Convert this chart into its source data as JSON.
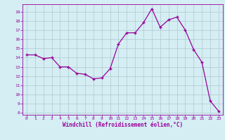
{
  "x": [
    0,
    1,
    2,
    3,
    4,
    5,
    6,
    7,
    8,
    9,
    10,
    11,
    12,
    13,
    14,
    15,
    16,
    17,
    18,
    19,
    20,
    21,
    22,
    23
  ],
  "y": [
    14.3,
    14.3,
    13.9,
    14.0,
    13.0,
    13.0,
    12.3,
    12.2,
    11.7,
    11.8,
    12.8,
    15.5,
    16.7,
    16.7,
    17.8,
    19.3,
    17.3,
    18.1,
    18.4,
    17.0,
    14.9,
    13.5,
    9.3,
    8.2
  ],
  "line_color": "#990099",
  "marker": "+",
  "bg_color": "#d4eef4",
  "grid_color": "#b0c8d0",
  "xlabel": "Windchill (Refroidissement éolien,°C)",
  "xlabel_color": "#990099",
  "tick_color": "#990099",
  "ylim": [
    7.8,
    19.8
  ],
  "xlim": [
    -0.5,
    23.5
  ],
  "yticks": [
    8,
    9,
    10,
    11,
    12,
    13,
    14,
    15,
    16,
    17,
    18,
    19
  ],
  "xticks": [
    0,
    1,
    2,
    3,
    4,
    5,
    6,
    7,
    8,
    9,
    10,
    11,
    12,
    13,
    14,
    15,
    16,
    17,
    18,
    19,
    20,
    21,
    22,
    23
  ]
}
